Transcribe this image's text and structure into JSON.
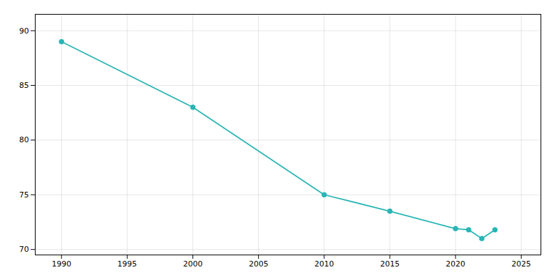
{
  "chart_data": {
    "type": "line",
    "x": [
      1990,
      2000,
      2010,
      2015,
      2020,
      2021,
      2022,
      2023
    ],
    "values": [
      89.0,
      83.0,
      75.0,
      73.5,
      71.9,
      71.8,
      71.0,
      71.8
    ],
    "color": "#2ab5b5",
    "marker": "circle",
    "xlim": [
      1988,
      2026.5
    ],
    "xticks": [
      1990,
      1995,
      2000,
      2005,
      2010,
      2015,
      2020,
      2025
    ],
    "ylim": [
      69.5,
      91.5
    ],
    "yticks": [
      70,
      75,
      80,
      85,
      90
    ],
    "grid": true
  }
}
